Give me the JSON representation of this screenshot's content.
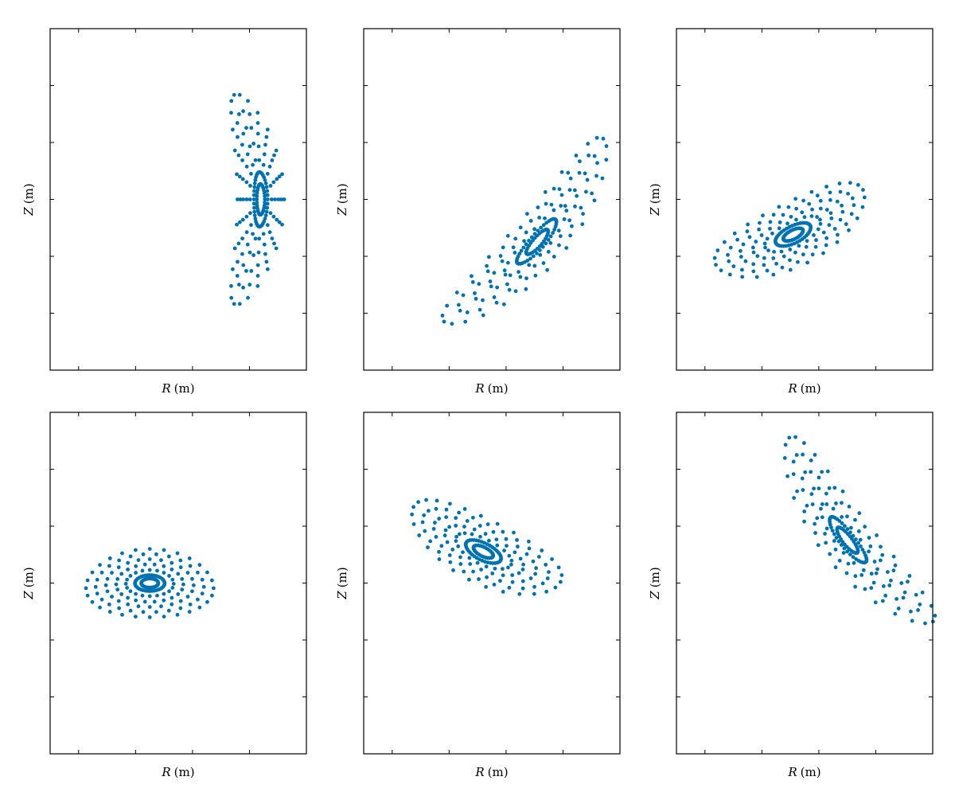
{
  "figure": {
    "rows": 2,
    "cols": 3,
    "marker_color": "#0072b2",
    "axis_color": "#000000",
    "background": "#ffffff"
  },
  "chart_data": [
    {
      "type": "scatter",
      "xlabel_var": "R",
      "xlabel_unit": "(m)",
      "ylabel_var": "Z",
      "ylabel_unit": "(m)",
      "xlim": [
        0,
        4.5
      ],
      "ylim": [
        -3,
        3
      ],
      "xticks": [
        0.5,
        1.5,
        2.5,
        3.5
      ],
      "yticks": [
        -2,
        -1,
        0,
        1,
        2
      ],
      "tick_labels_shown": false,
      "grid": false,
      "legend": null,
      "surfaces": [
        {
          "center": [
            3.7,
            0.0
          ],
          "a": 0.41,
          "b": 1.85,
          "rotation_deg": 0,
          "bend": -0.23,
          "points": 26
        },
        {
          "center": [
            3.7,
            0.0
          ],
          "a": 0.36,
          "b": 1.55,
          "rotation_deg": 0,
          "bend": -0.2,
          "points": 24
        },
        {
          "center": [
            3.7,
            0.0
          ],
          "a": 0.31,
          "b": 1.27,
          "rotation_deg": 0,
          "bend": -0.17,
          "points": 22
        },
        {
          "center": [
            3.7,
            0.0
          ],
          "a": 0.25,
          "b": 0.98,
          "rotation_deg": 0,
          "bend": -0.13,
          "points": 20
        },
        {
          "center": [
            3.7,
            0.0
          ],
          "a": 0.19,
          "b": 0.7,
          "rotation_deg": 0,
          "bend": -0.09,
          "points": 18
        },
        {
          "center": [
            3.7,
            0.0
          ],
          "a": 0.12,
          "b": 0.48,
          "rotation_deg": 0,
          "bend": -0.05,
          "points": 40
        },
        {
          "center": [
            3.7,
            0.0
          ],
          "a": 0.07,
          "b": 0.27,
          "rotation_deg": 0,
          "bend": -0.03,
          "points": 30
        }
      ]
    },
    {
      "type": "scatter",
      "xlabel_var": "R",
      "xlabel_unit": "(m)",
      "ylabel_var": "Z",
      "ylabel_unit": "(m)",
      "xlim": [
        0,
        4.5
      ],
      "ylim": [
        -3,
        3
      ],
      "xticks": [
        0.5,
        1.5,
        2.5,
        3.5
      ],
      "yticks": [
        -2,
        -1,
        0,
        1,
        2
      ],
      "tick_labels_shown": false,
      "grid": false,
      "legend": null,
      "surfaces": [
        {
          "center": [
            3.05,
            -0.75
          ],
          "a": 2.13,
          "b": 0.46,
          "rotation_deg": 49,
          "bend": 0.15,
          "points": 26
        },
        {
          "center": [
            3.05,
            -0.75
          ],
          "a": 1.8,
          "b": 0.39,
          "rotation_deg": 49,
          "bend": 0.13,
          "points": 24
        },
        {
          "center": [
            3.05,
            -0.75
          ],
          "a": 1.46,
          "b": 0.33,
          "rotation_deg": 49,
          "bend": 0.11,
          "points": 22
        },
        {
          "center": [
            3.05,
            -0.75
          ],
          "a": 1.12,
          "b": 0.26,
          "rotation_deg": 49,
          "bend": 0.09,
          "points": 20
        },
        {
          "center": [
            3.05,
            -0.75
          ],
          "a": 0.8,
          "b": 0.19,
          "rotation_deg": 49,
          "bend": 0.06,
          "points": 18
        },
        {
          "center": [
            3.05,
            -0.75
          ],
          "a": 0.51,
          "b": 0.13,
          "rotation_deg": 49,
          "bend": 0.04,
          "points": 40
        },
        {
          "center": [
            3.05,
            -0.75
          ],
          "a": 0.28,
          "b": 0.08,
          "rotation_deg": 49,
          "bend": 0.02,
          "points": 30
        }
      ]
    },
    {
      "type": "scatter",
      "xlabel_var": "R",
      "xlabel_unit": "(m)",
      "ylabel_var": "Z",
      "ylabel_unit": "(m)",
      "xlim": [
        0,
        4.5
      ],
      "ylim": [
        -3,
        3
      ],
      "xticks": [
        0.5,
        1.5,
        2.5,
        3.5
      ],
      "yticks": [
        -2,
        -1,
        0,
        1,
        2
      ],
      "tick_labels_shown": false,
      "grid": false,
      "legend": null,
      "surfaces": [
        {
          "center": [
            2.05,
            -0.62
          ],
          "a": 1.45,
          "b": 0.55,
          "rotation_deg": 27,
          "bend": 0.1,
          "points": 28
        },
        {
          "center": [
            2.05,
            -0.62
          ],
          "a": 1.22,
          "b": 0.47,
          "rotation_deg": 27,
          "bend": 0.08,
          "points": 26
        },
        {
          "center": [
            2.05,
            -0.62
          ],
          "a": 0.99,
          "b": 0.39,
          "rotation_deg": 27,
          "bend": 0.07,
          "points": 24
        },
        {
          "center": [
            2.05,
            -0.62
          ],
          "a": 0.76,
          "b": 0.3,
          "rotation_deg": 27,
          "bend": 0.05,
          "points": 22
        },
        {
          "center": [
            2.05,
            -0.62
          ],
          "a": 0.54,
          "b": 0.22,
          "rotation_deg": 27,
          "bend": 0.04,
          "points": 20
        },
        {
          "center": [
            2.05,
            -0.62
          ],
          "a": 0.34,
          "b": 0.15,
          "rotation_deg": 27,
          "bend": 0.02,
          "points": 40
        },
        {
          "center": [
            2.05,
            -0.62
          ],
          "a": 0.19,
          "b": 0.08,
          "rotation_deg": 27,
          "bend": 0.01,
          "points": 30
        }
      ]
    },
    {
      "type": "scatter",
      "xlabel_var": "R",
      "xlabel_unit": "(m)",
      "ylabel_var": "Z",
      "ylabel_unit": "(m)",
      "xlim": [
        0,
        4.5
      ],
      "ylim": [
        -3,
        3
      ],
      "xticks": [
        0.5,
        1.5,
        2.5,
        3.5
      ],
      "yticks": [
        -2,
        -1,
        0,
        1,
        2
      ],
      "tick_labels_shown": false,
      "grid": false,
      "legend": null,
      "surfaces": [
        {
          "center": [
            1.75,
            0.0
          ],
          "a": 1.12,
          "b": 0.6,
          "rotation_deg": 0,
          "bend": -0.08,
          "points": 28
        },
        {
          "center": [
            1.75,
            0.0
          ],
          "a": 0.95,
          "b": 0.51,
          "rotation_deg": 0,
          "bend": -0.07,
          "points": 26
        },
        {
          "center": [
            1.75,
            0.0
          ],
          "a": 0.77,
          "b": 0.42,
          "rotation_deg": 0,
          "bend": -0.05,
          "points": 24
        },
        {
          "center": [
            1.75,
            0.0
          ],
          "a": 0.59,
          "b": 0.33,
          "rotation_deg": 0,
          "bend": -0.04,
          "points": 22
        },
        {
          "center": [
            1.75,
            0.0
          ],
          "a": 0.42,
          "b": 0.23,
          "rotation_deg": 0,
          "bend": -0.03,
          "points": 20
        },
        {
          "center": [
            1.75,
            0.0
          ],
          "a": 0.26,
          "b": 0.14,
          "rotation_deg": 0,
          "bend": -0.02,
          "points": 40
        },
        {
          "center": [
            1.75,
            0.0
          ],
          "a": 0.15,
          "b": 0.08,
          "rotation_deg": 0,
          "bend": -0.01,
          "points": 30
        }
      ]
    },
    {
      "type": "scatter",
      "xlabel_var": "R",
      "xlabel_unit": "(m)",
      "ylabel_var": "Z",
      "ylabel_unit": "(m)",
      "xlim": [
        0,
        4.5
      ],
      "ylim": [
        -3,
        3
      ],
      "xticks": [
        0.5,
        1.5,
        2.5,
        3.5
      ],
      "yticks": [
        -2,
        -1,
        0,
        1,
        2
      ],
      "tick_labels_shown": false,
      "grid": false,
      "legend": null,
      "surfaces": [
        {
          "center": [
            2.1,
            0.55
          ],
          "a": 1.45,
          "b": 0.55,
          "rotation_deg": -27,
          "bend": 0.1,
          "points": 28
        },
        {
          "center": [
            2.1,
            0.55
          ],
          "a": 1.22,
          "b": 0.47,
          "rotation_deg": -27,
          "bend": 0.08,
          "points": 26
        },
        {
          "center": [
            2.1,
            0.55
          ],
          "a": 0.99,
          "b": 0.39,
          "rotation_deg": -27,
          "bend": 0.07,
          "points": 24
        },
        {
          "center": [
            2.1,
            0.55
          ],
          "a": 0.76,
          "b": 0.3,
          "rotation_deg": -27,
          "bend": 0.05,
          "points": 22
        },
        {
          "center": [
            2.1,
            0.55
          ],
          "a": 0.54,
          "b": 0.22,
          "rotation_deg": -27,
          "bend": 0.04,
          "points": 20
        },
        {
          "center": [
            2.1,
            0.55
          ],
          "a": 0.34,
          "b": 0.15,
          "rotation_deg": -27,
          "bend": 0.02,
          "points": 40
        },
        {
          "center": [
            2.1,
            0.55
          ],
          "a": 0.19,
          "b": 0.08,
          "rotation_deg": -27,
          "bend": 0.01,
          "points": 30
        }
      ]
    },
    {
      "type": "scatter",
      "xlabel_var": "R",
      "xlabel_unit": "(m)",
      "ylabel_var": "Z",
      "ylabel_unit": "(m)",
      "xlim": [
        0,
        4.5
      ],
      "ylim": [
        -3,
        3
      ],
      "xticks": [
        0.5,
        1.5,
        2.5,
        3.5
      ],
      "yticks": [
        -2,
        -1,
        0,
        1,
        2
      ],
      "tick_labels_shown": false,
      "grid": false,
      "legend": null,
      "surfaces": [
        {
          "center": [
            3.0,
            0.75
          ],
          "a": 2.05,
          "b": 0.46,
          "rotation_deg": -52,
          "bend": 0.15,
          "points": 26
        },
        {
          "center": [
            3.0,
            0.75
          ],
          "a": 1.73,
          "b": 0.39,
          "rotation_deg": -52,
          "bend": 0.13,
          "points": 24
        },
        {
          "center": [
            3.0,
            0.75
          ],
          "a": 1.4,
          "b": 0.33,
          "rotation_deg": -52,
          "bend": 0.11,
          "points": 22
        },
        {
          "center": [
            3.0,
            0.75
          ],
          "a": 1.08,
          "b": 0.26,
          "rotation_deg": -52,
          "bend": 0.09,
          "points": 20
        },
        {
          "center": [
            3.0,
            0.75
          ],
          "a": 0.77,
          "b": 0.19,
          "rotation_deg": -52,
          "bend": 0.06,
          "points": 18
        },
        {
          "center": [
            3.0,
            0.75
          ],
          "a": 0.5,
          "b": 0.13,
          "rotation_deg": -52,
          "bend": 0.04,
          "points": 40
        },
        {
          "center": [
            3.0,
            0.75
          ],
          "a": 0.28,
          "b": 0.08,
          "rotation_deg": -52,
          "bend": 0.02,
          "points": 30
        }
      ]
    }
  ]
}
